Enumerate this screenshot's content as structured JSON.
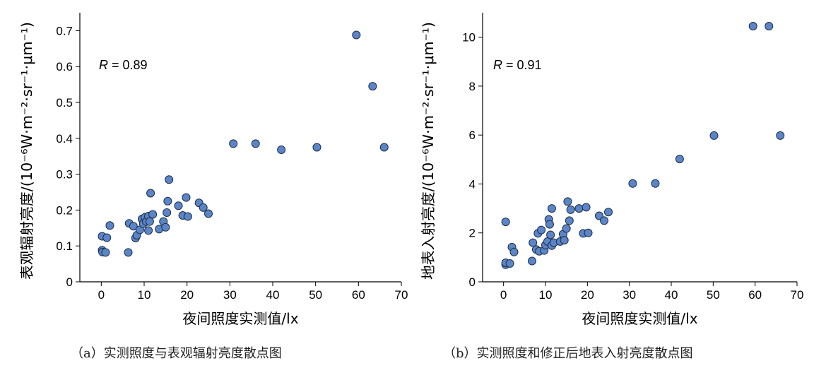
{
  "chart_data": [
    {
      "type": "scatter",
      "xlabel": "夜间照度实测值/lx",
      "ylabel": "表观辐射亮度/(10⁻⁶W·m⁻²·sr⁻¹·μm⁻¹)",
      "xlim": [
        -5,
        70
      ],
      "ylim": [
        0,
        0.75
      ],
      "xticks": [
        0,
        10,
        20,
        30,
        40,
        50,
        60,
        70
      ],
      "xtick_labels": [
        "0",
        "10",
        "20",
        "30",
        "40",
        "50",
        "60",
        "70"
      ],
      "yticks": [
        0,
        0.1,
        0.2,
        0.3,
        0.4,
        0.5,
        0.6,
        0.7
      ],
      "ytick_labels": [
        "0",
        "0.1",
        "0.2",
        "0.3",
        "0.4",
        "0.5",
        "0.6",
        "0.7"
      ],
      "annotation": {
        "var": "R",
        "text": " = 0.89"
      },
      "caption": "（a）实测照度与表观辐射亮度散点图",
      "points": [
        [
          0.2,
          0.127
        ],
        [
          0.2,
          0.088
        ],
        [
          0.3,
          0.083
        ],
        [
          1.0,
          0.082
        ],
        [
          1.3,
          0.123
        ],
        [
          2.0,
          0.157
        ],
        [
          6.3,
          0.082
        ],
        [
          6.5,
          0.163
        ],
        [
          7.5,
          0.155
        ],
        [
          8.0,
          0.122
        ],
        [
          8.3,
          0.13
        ],
        [
          9.0,
          0.145
        ],
        [
          9.5,
          0.175
        ],
        [
          9.8,
          0.162
        ],
        [
          10.2,
          0.18
        ],
        [
          10.5,
          0.168
        ],
        [
          11.0,
          0.143
        ],
        [
          11.0,
          0.183
        ],
        [
          11.3,
          0.168
        ],
        [
          11.5,
          0.247
        ],
        [
          12.0,
          0.188
        ],
        [
          13.5,
          0.147
        ],
        [
          14.5,
          0.168
        ],
        [
          15.0,
          0.152
        ],
        [
          15.3,
          0.193
        ],
        [
          15.5,
          0.225
        ],
        [
          15.8,
          0.285
        ],
        [
          18.0,
          0.212
        ],
        [
          19.0,
          0.185
        ],
        [
          19.8,
          0.235
        ],
        [
          20.2,
          0.182
        ],
        [
          22.8,
          0.22
        ],
        [
          23.8,
          0.207
        ],
        [
          25.0,
          0.19
        ],
        [
          30.8,
          0.385
        ],
        [
          36.0,
          0.385
        ],
        [
          42.0,
          0.368
        ],
        [
          50.3,
          0.375
        ],
        [
          59.5,
          0.688
        ],
        [
          63.3,
          0.545
        ],
        [
          66.0,
          0.375
        ]
      ]
    },
    {
      "type": "scatter",
      "xlabel": "夜间照度实测值/lx",
      "ylabel": "地表入射亮度/(10⁻⁶W·m⁻²·sr⁻¹·μm⁻¹)",
      "xlim": [
        -5,
        70
      ],
      "ylim": [
        0,
        11
      ],
      "xticks": [
        0,
        10,
        20,
        30,
        40,
        50,
        60,
        70
      ],
      "xtick_labels": [
        "0",
        "10",
        "20",
        "30",
        "40",
        "50",
        "60",
        "70"
      ],
      "yticks": [
        0,
        2,
        4,
        6,
        8,
        10
      ],
      "ytick_labels": [
        "0",
        "2",
        "4",
        "6",
        "8",
        "10"
      ],
      "annotation": {
        "var": "R",
        "text": " = 0.91"
      },
      "caption": "（b）实测照度和修正后地表入射亮度散点图",
      "points": [
        [
          0.5,
          2.45
        ],
        [
          0.5,
          0.7
        ],
        [
          0.5,
          0.78
        ],
        [
          1.5,
          0.75
        ],
        [
          2.0,
          1.42
        ],
        [
          2.5,
          1.22
        ],
        [
          6.8,
          0.85
        ],
        [
          7.0,
          1.6
        ],
        [
          7.8,
          1.32
        ],
        [
          8.2,
          1.98
        ],
        [
          8.5,
          1.25
        ],
        [
          9.0,
          2.12
        ],
        [
          9.7,
          1.28
        ],
        [
          10.0,
          1.5
        ],
        [
          10.5,
          1.65
        ],
        [
          10.8,
          2.55
        ],
        [
          11.0,
          2.35
        ],
        [
          11.2,
          1.92
        ],
        [
          11.5,
          3.0
        ],
        [
          11.5,
          1.48
        ],
        [
          12.0,
          1.6
        ],
        [
          13.5,
          1.65
        ],
        [
          14.2,
          1.95
        ],
        [
          14.5,
          1.7
        ],
        [
          15.0,
          2.18
        ],
        [
          15.3,
          3.28
        ],
        [
          15.7,
          2.5
        ],
        [
          16.0,
          2.95
        ],
        [
          18.0,
          3.0
        ],
        [
          19.0,
          1.98
        ],
        [
          19.7,
          3.05
        ],
        [
          20.2,
          2.0
        ],
        [
          22.8,
          2.7
        ],
        [
          24.0,
          2.5
        ],
        [
          25.0,
          2.85
        ],
        [
          30.8,
          4.02
        ],
        [
          36.2,
          4.02
        ],
        [
          42.0,
          5.02
        ],
        [
          50.2,
          5.98
        ],
        [
          59.5,
          10.45
        ],
        [
          63.3,
          10.45
        ],
        [
          66.0,
          5.98
        ]
      ]
    }
  ]
}
